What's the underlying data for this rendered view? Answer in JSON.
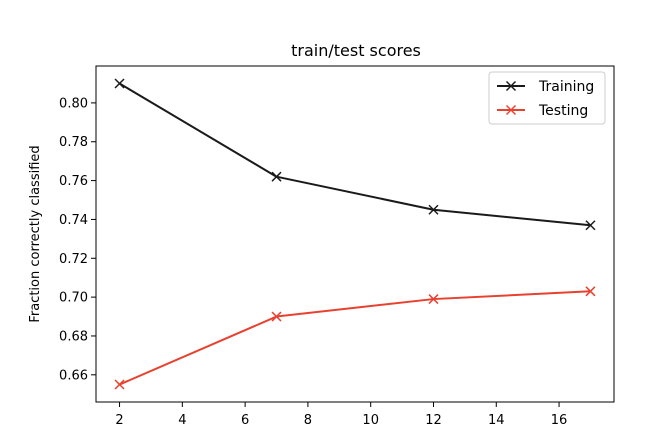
{
  "chart_data": {
    "type": "line",
    "title": "train/test scores",
    "xlabel": "",
    "ylabel": "Fraction correctly classified",
    "x": [
      2,
      7,
      12,
      17
    ],
    "xlim": [
      1.25,
      17.75
    ],
    "ylim": [
      0.646,
      0.819
    ],
    "xticks": [
      2,
      4,
      6,
      8,
      10,
      12,
      14,
      16
    ],
    "yticks": [
      0.66,
      0.68,
      0.7,
      0.72,
      0.74,
      0.76,
      0.78,
      0.8
    ],
    "ytick_labels": [
      "0.66",
      "0.68",
      "0.70",
      "0.72",
      "0.74",
      "0.76",
      "0.78",
      "0.80"
    ],
    "grid": false,
    "legend_position": "top-right",
    "series": [
      {
        "name": "Training",
        "color": "#1a1a1a",
        "marker": "x",
        "values": [
          0.81,
          0.762,
          0.745,
          0.737
        ]
      },
      {
        "name": "Testing",
        "color": "#e8412f",
        "marker": "x",
        "values": [
          0.655,
          0.69,
          0.699,
          0.703
        ]
      }
    ]
  }
}
